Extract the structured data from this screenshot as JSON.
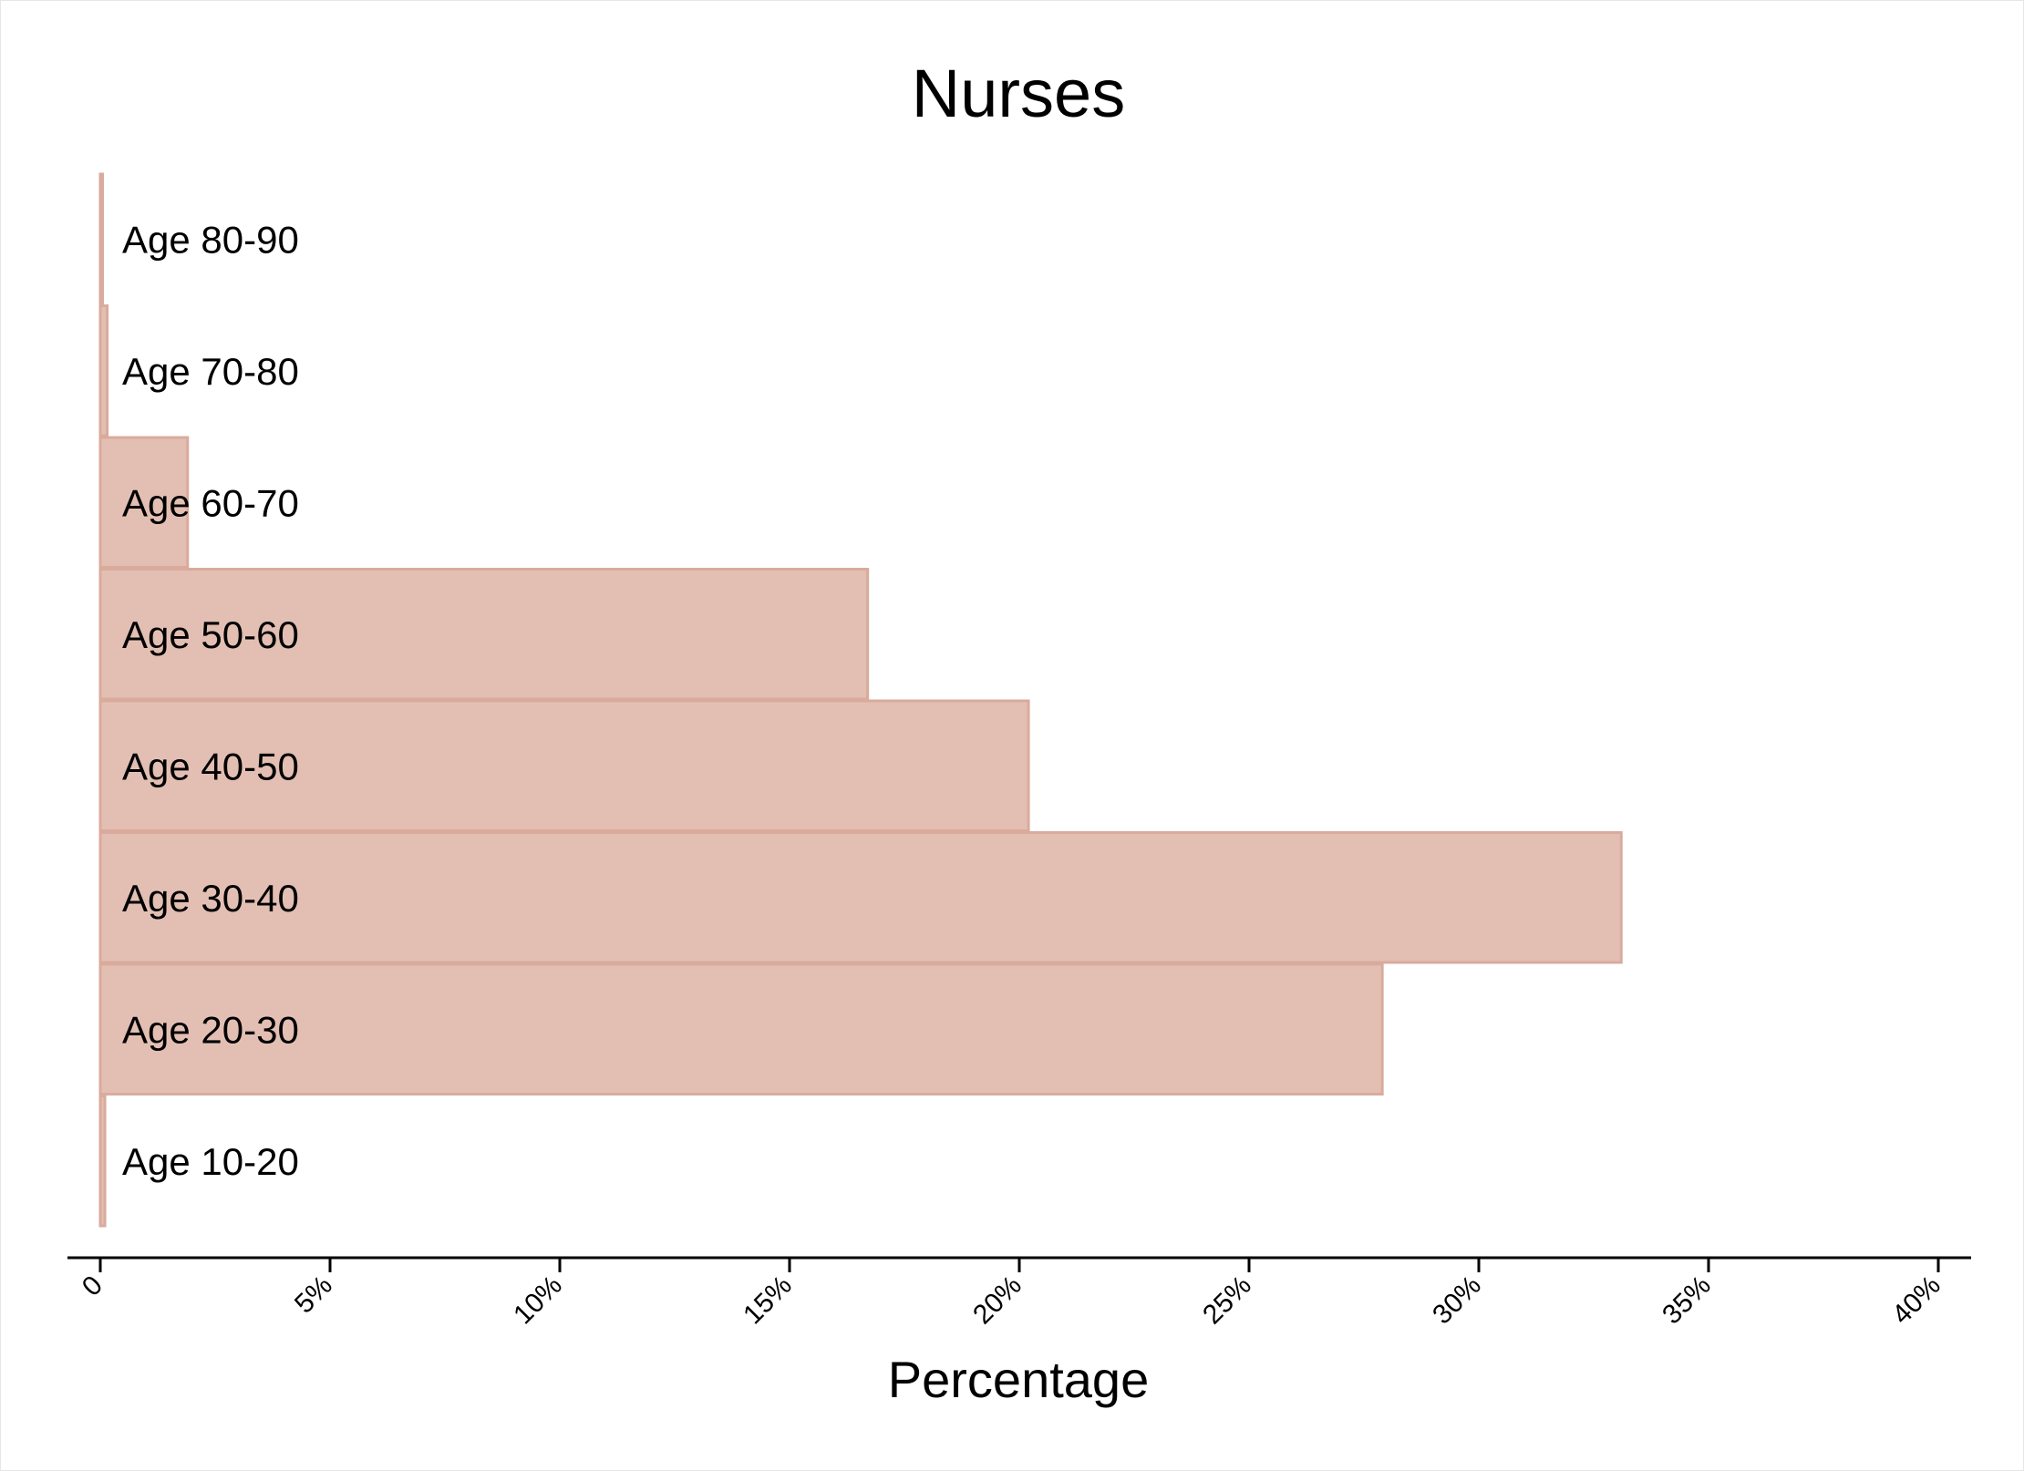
{
  "chart_data": {
    "type": "bar",
    "orientation": "horizontal",
    "title": "Nurses",
    "xlabel": "Percentage",
    "ylabel": "",
    "categories": [
      "Age 10-20",
      "Age 20-30",
      "Age 30-40",
      "Age 40-50",
      "Age 50-60",
      "Age 60-70",
      "Age 70-80",
      "Age 80-90"
    ],
    "values": [
      0.1,
      27.9,
      33.1,
      20.2,
      16.7,
      1.9,
      0.15,
      0.05
    ],
    "xlim": [
      0,
      40
    ],
    "xticks": [
      0,
      5,
      10,
      15,
      20,
      25,
      30,
      35,
      40
    ],
    "xtick_labels": [
      "0",
      "5%",
      "10%",
      "15%",
      "20%",
      "25%",
      "30%",
      "35%",
      "40%"
    ],
    "grid": false,
    "legend": "none",
    "colors": {
      "bar_fill": "#e3bfb3",
      "bar_stroke": "#d9ab9c",
      "axis": "#000000"
    }
  }
}
